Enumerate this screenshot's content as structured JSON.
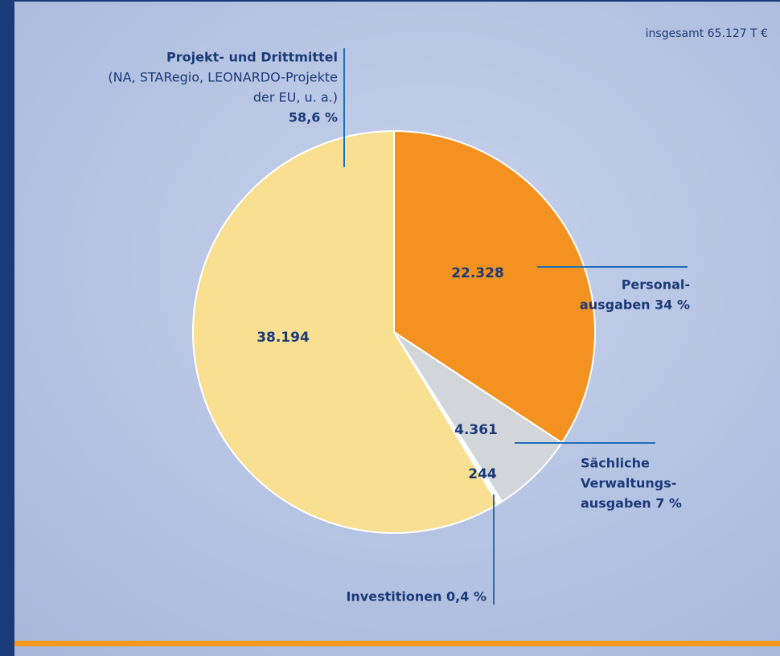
{
  "chart_data": {
    "type": "pie",
    "annotation": "insgesamt 65.127 T €",
    "values": [
      22328,
      4361,
      244,
      38194
    ],
    "value_labels": [
      "22.328",
      "4.361",
      "244",
      "38.194"
    ],
    "colors": [
      "#f39220",
      "#d2d5da",
      "#ffffff",
      "#f9df92"
    ],
    "labels": [
      {
        "lines": [
          "Personal-",
          "ausgaben 34 %"
        ],
        "bold": [
          true,
          true
        ]
      },
      {
        "lines": [
          "Sächliche",
          "Verwaltungs-",
          "ausgaben 7 %"
        ],
        "bold": [
          true,
          true,
          true
        ]
      },
      {
        "lines": [
          "Investitionen 0,4 %"
        ],
        "bold": [
          true
        ]
      },
      {
        "lines": [
          "Projekt- und Drittmittel",
          "(NA, STARegio, LEONARDO-Projekte",
          "der EU, u. a.)",
          "58,6 %"
        ],
        "bold": [
          true,
          false,
          false,
          true
        ]
      }
    ]
  }
}
